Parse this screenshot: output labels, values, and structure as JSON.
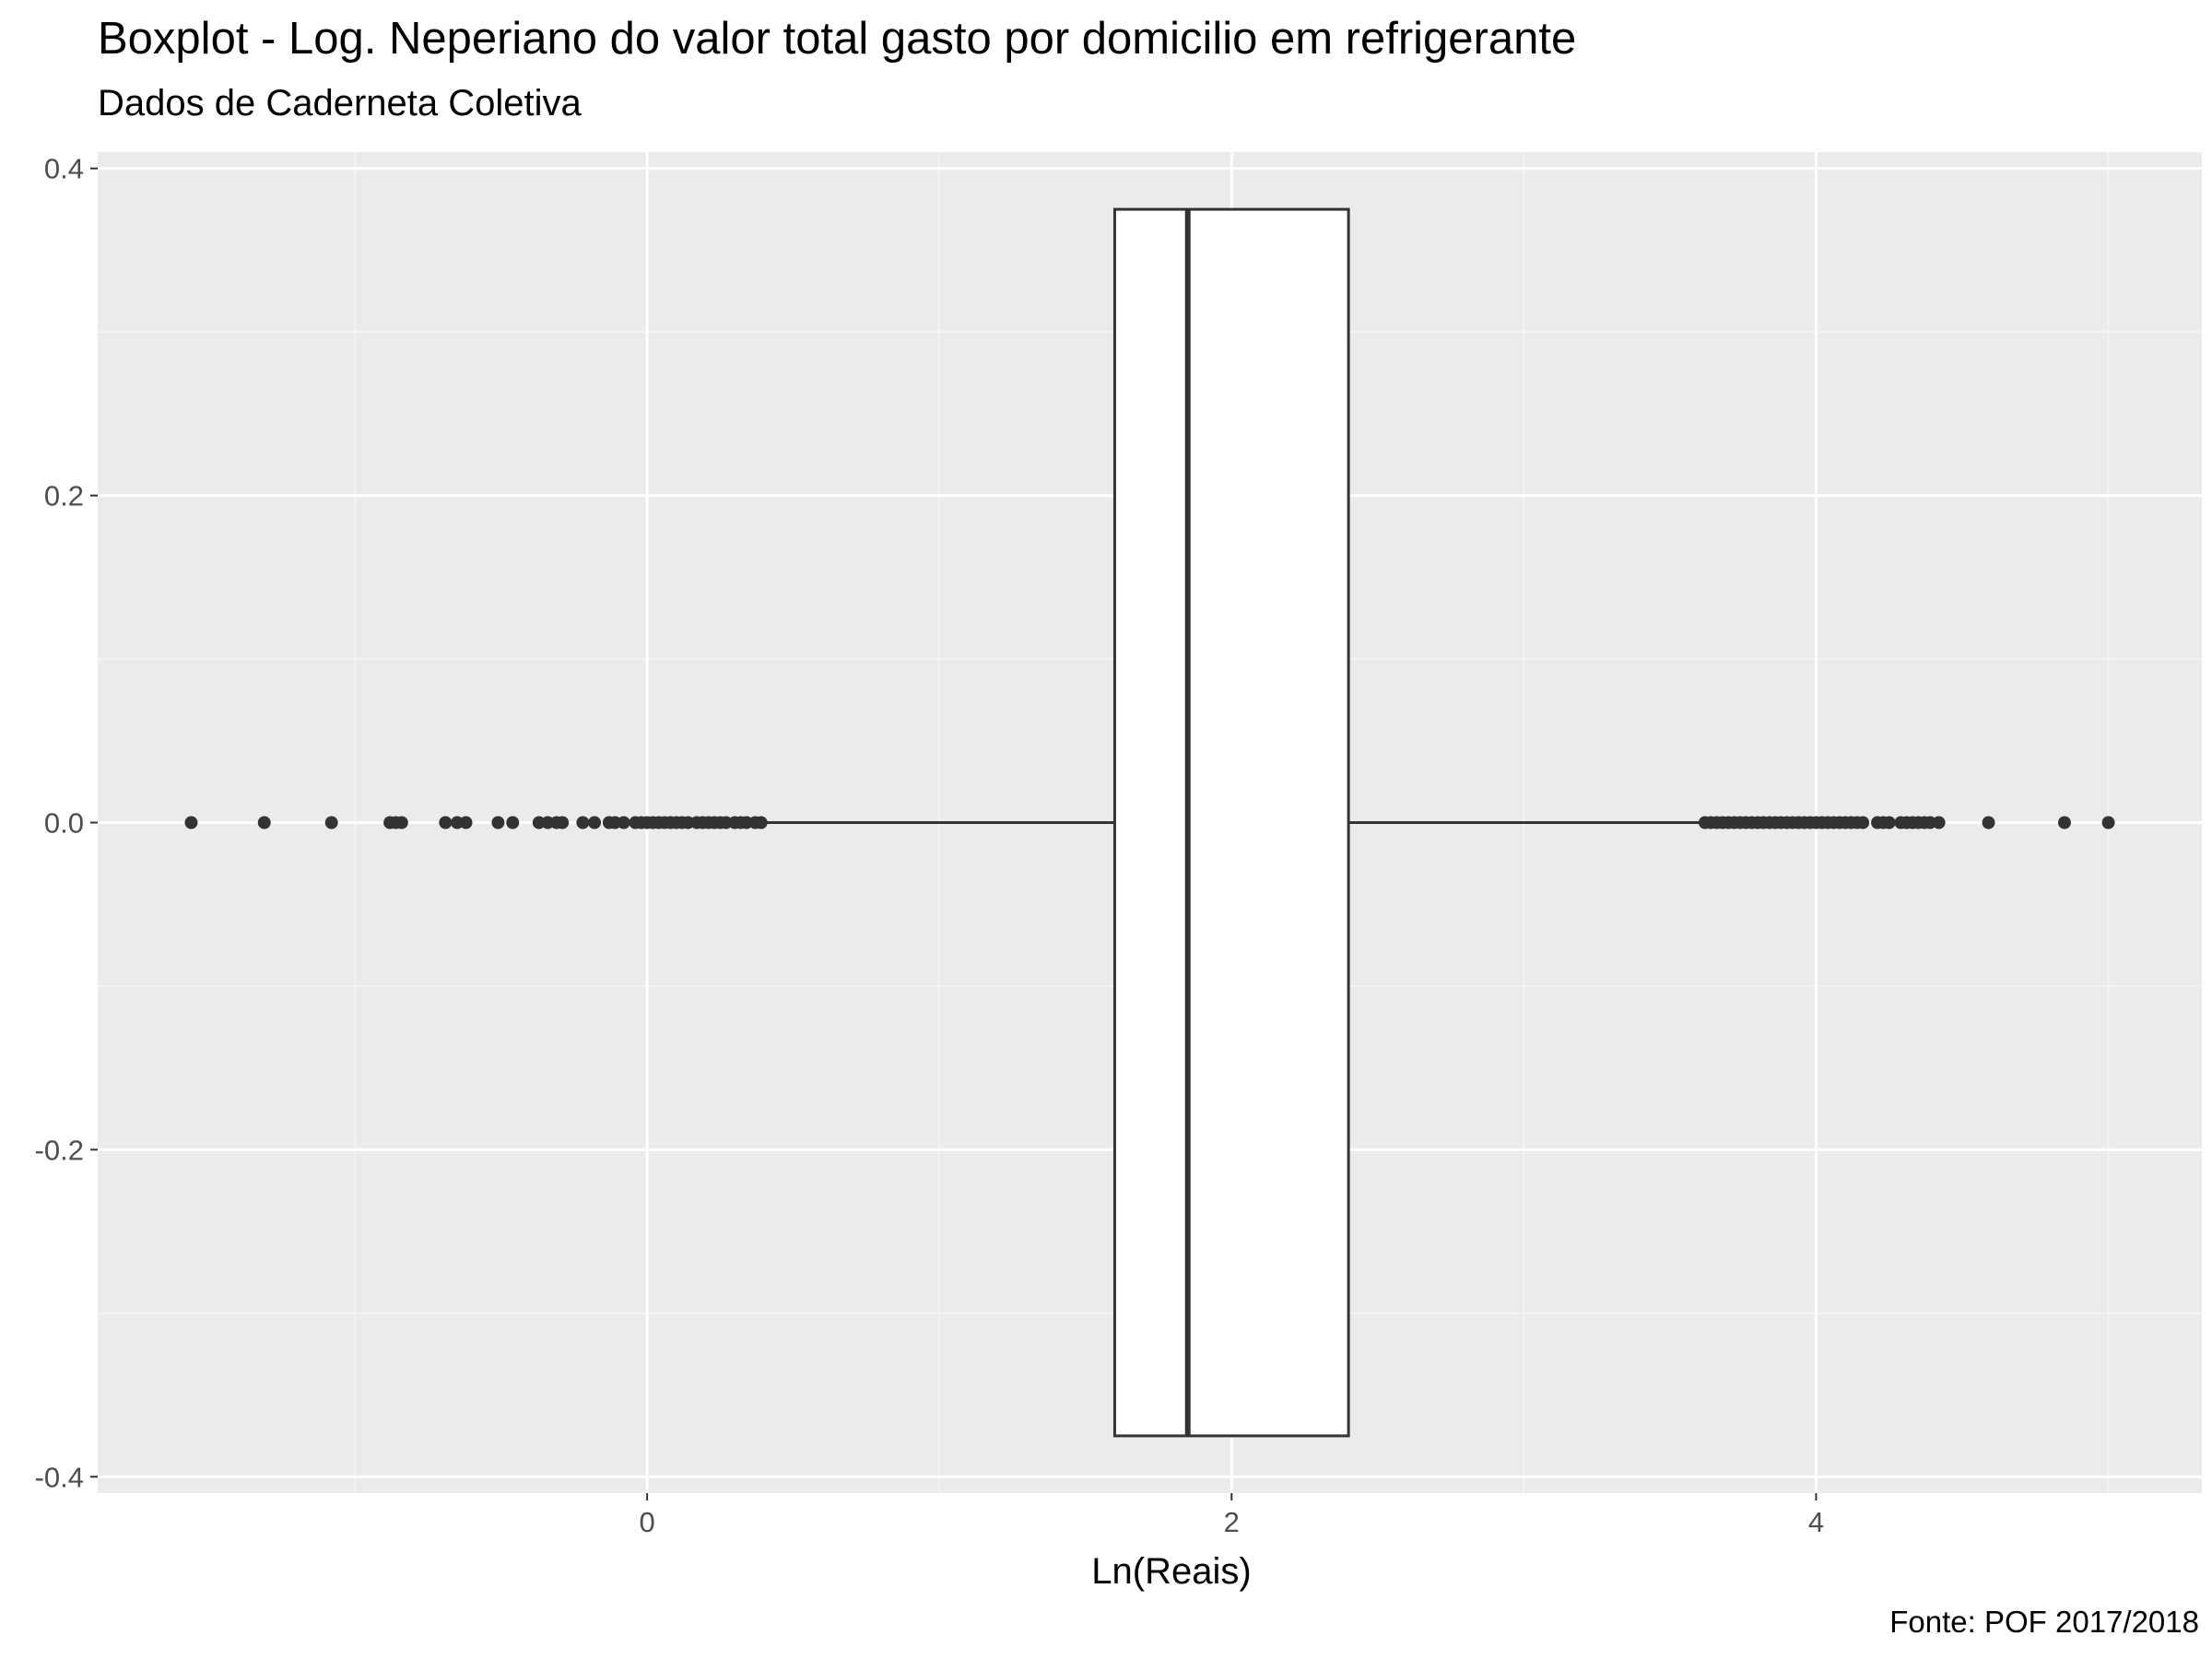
{
  "chart_data": {
    "type": "boxplot",
    "title": "Boxplot - Log. Neperiano do valor total gasto por domicilio em refrigerante",
    "subtitle": "Dados de Caderneta Coletiva",
    "caption": "Fonte: POF 2017/2018",
    "xlabel": "Ln(Reais)",
    "ylabel": "",
    "xlim": [
      -1.88,
      5.32
    ],
    "ylim": [
      -0.41,
      0.41
    ],
    "x_ticks": [
      0,
      2,
      4
    ],
    "x_tick_labels": [
      "0",
      "2",
      "4"
    ],
    "y_ticks": [
      -0.4,
      -0.2,
      0.0,
      0.2,
      0.4
    ],
    "y_tick_labels": [
      "-0.4",
      "-0.2",
      "0.0",
      "0.2",
      "0.4"
    ],
    "grid": true,
    "box": {
      "y": 0.0,
      "q1": 1.6,
      "median": 1.85,
      "q3": 2.4,
      "whisker_low": 0.4,
      "whisker_high": 3.6,
      "half_width": 0.375
    },
    "outliers": [
      -1.56,
      -1.31,
      -1.08,
      -0.88,
      -0.86,
      -0.84,
      -0.69,
      -0.65,
      -0.62,
      -0.51,
      -0.46,
      -0.37,
      -0.34,
      -0.31,
      -0.29,
      -0.22,
      -0.18,
      -0.13,
      -0.11,
      -0.08,
      -0.04,
      -0.02,
      0.0,
      0.02,
      0.04,
      0.06,
      0.08,
      0.1,
      0.12,
      0.14,
      0.17,
      0.19,
      0.21,
      0.23,
      0.25,
      0.27,
      0.3,
      0.32,
      0.34,
      0.37,
      0.39,
      3.62,
      3.64,
      3.66,
      3.68,
      3.7,
      3.72,
      3.74,
      3.76,
      3.78,
      3.8,
      3.82,
      3.84,
      3.86,
      3.88,
      3.9,
      3.92,
      3.94,
      3.96,
      3.98,
      4.0,
      4.02,
      4.04,
      4.06,
      4.08,
      4.1,
      4.12,
      4.14,
      4.16,
      4.21,
      4.23,
      4.25,
      4.29,
      4.31,
      4.33,
      4.35,
      4.37,
      4.39,
      4.42,
      4.59,
      4.85,
      5.0
    ]
  },
  "colors": {
    "panel_background": "#ebebeb",
    "grid_major": "#ffffff",
    "grid_minor": "#f5f5f5",
    "box_fill": "#ffffff",
    "line": "#333333",
    "point": "#333333"
  }
}
